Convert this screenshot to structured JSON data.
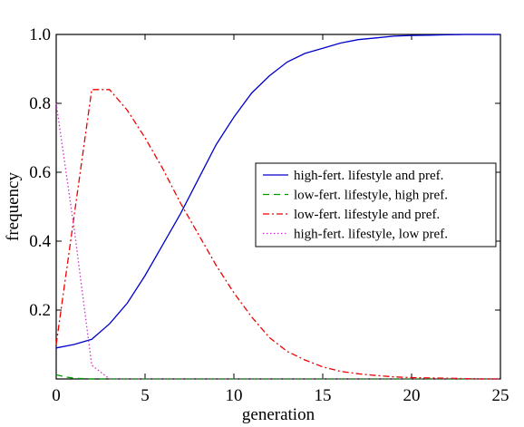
{
  "chart_data": {
    "type": "line",
    "title": "",
    "xlabel": "generation",
    "ylabel": "frequency",
    "xlim": [
      0,
      25
    ],
    "ylim": [
      0,
      1
    ],
    "xticks": [
      0,
      5,
      10,
      15,
      20,
      25
    ],
    "xtick_labels": [
      "0",
      "5",
      "10",
      "15",
      "20",
      "25"
    ],
    "yticks": [
      0.2,
      0.4,
      0.6,
      0.8,
      1.0
    ],
    "ytick_labels": [
      "0.2",
      "0.4",
      "0.6",
      "0.8",
      "1.0"
    ],
    "grid": false,
    "legend_position": "center-right",
    "series": [
      {
        "name": "high-fert. lifestyle and pref.",
        "color": "#0000cc",
        "dash": "solid",
        "x": [
          0,
          1,
          2,
          3,
          4,
          5,
          6,
          7,
          8,
          9,
          10,
          11,
          12,
          13,
          14,
          15,
          16,
          17,
          18,
          19,
          20,
          21,
          22,
          23,
          24,
          25
        ],
        "y": [
          0.09,
          0.1,
          0.115,
          0.16,
          0.22,
          0.3,
          0.39,
          0.48,
          0.58,
          0.68,
          0.76,
          0.83,
          0.88,
          0.92,
          0.945,
          0.96,
          0.975,
          0.985,
          0.99,
          0.995,
          0.997,
          0.998,
          0.999,
          1.0,
          1.0,
          1.0
        ]
      },
      {
        "name": "low-fert. lifestyle, high pref.",
        "color": "#009900",
        "dash": "dashed",
        "x": [
          0,
          0.5,
          1,
          2,
          3,
          4,
          5,
          10,
          15,
          20,
          25
        ],
        "y": [
          0.012,
          0.006,
          0.002,
          0.0,
          0.0,
          0.0,
          0.0,
          0.0,
          0.0,
          0.0,
          0.0
        ]
      },
      {
        "name": "low-fert. lifestyle and pref.",
        "color": "#ee0000",
        "dash": "dashdot",
        "x": [
          0,
          1,
          2,
          3,
          4,
          5,
          6,
          7,
          8,
          9,
          10,
          11,
          12,
          13,
          14,
          15,
          16,
          17,
          18,
          19,
          20,
          21,
          22,
          23,
          24,
          25
        ],
        "y": [
          0.1,
          0.47,
          0.84,
          0.84,
          0.78,
          0.7,
          0.61,
          0.51,
          0.42,
          0.33,
          0.25,
          0.18,
          0.12,
          0.08,
          0.055,
          0.035,
          0.022,
          0.015,
          0.01,
          0.006,
          0.004,
          0.003,
          0.002,
          0.001,
          0.0,
          0.0
        ]
      },
      {
        "name": "high-fert. lifestyle, low pref.",
        "color": "#cc33cc",
        "dash": "dotted",
        "x": [
          0,
          1,
          2,
          3,
          4,
          5,
          10,
          15,
          20,
          25
        ],
        "y": [
          0.8,
          0.44,
          0.04,
          0.0,
          0.0,
          0.0,
          0.0,
          0.0,
          0.0,
          0.0
        ]
      }
    ]
  }
}
